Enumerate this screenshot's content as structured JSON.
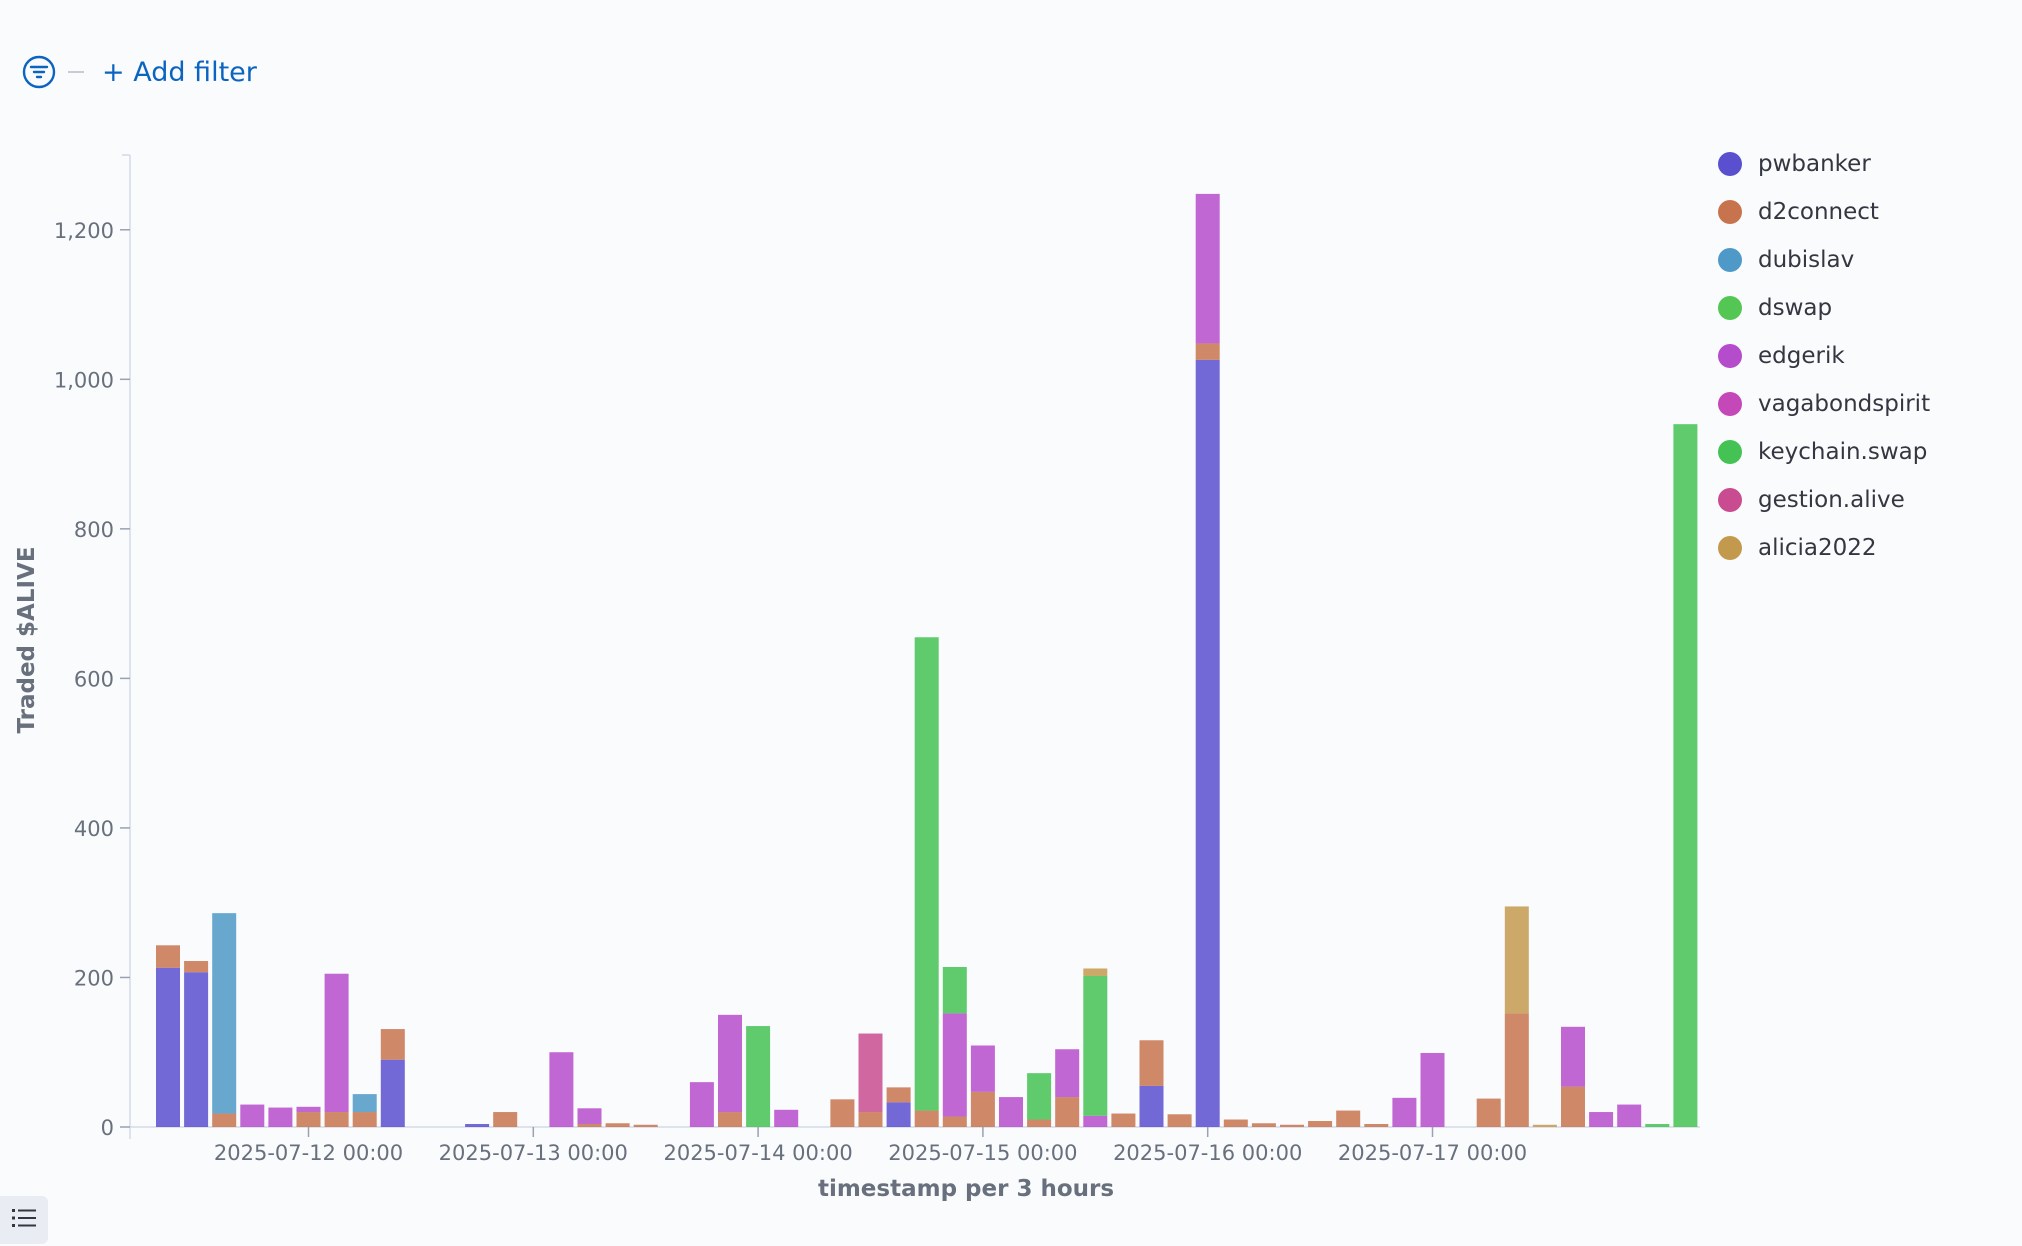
{
  "filter": {
    "add_label": "+ Add filter"
  },
  "icons": {
    "filter": "filter-icon",
    "list": "list-icon"
  },
  "chart_data": {
    "type": "bar",
    "stacked": true,
    "xlabel": "timestamp per 3 hours",
    "ylabel": "Traded $ALIVE",
    "ylim": [
      0,
      1300
    ],
    "yticks": [
      0,
      200,
      400,
      600,
      800,
      1000,
      1200
    ],
    "tick_labels": [
      "2025-07-12 00:00",
      "2025-07-13 00:00",
      "2025-07-14 00:00",
      "2025-07-15 00:00",
      "2025-07-16 00:00",
      "2025-07-17 00:00"
    ],
    "tick_positions": [
      5,
      13,
      21,
      29,
      37,
      45
    ],
    "legend_position": "right",
    "series": [
      {
        "name": "pwbanker",
        "color": "#5a4fcf"
      },
      {
        "name": "d2connect",
        "color": "#c7734d"
      },
      {
        "name": "dubislav",
        "color": "#4e99c7"
      },
      {
        "name": "dswap",
        "color": "#54c654"
      },
      {
        "name": "edgerik",
        "color": "#b54ccb"
      },
      {
        "name": "vagabondspirit",
        "color": "#c548b9"
      },
      {
        "name": "keychain.swap",
        "color": "#44c254"
      },
      {
        "name": "gestion.alive",
        "color": "#c84c8f"
      },
      {
        "name": "alicia2022",
        "color": "#c39a4d"
      }
    ],
    "bars": [
      {
        "slot": 0,
        "segments": [
          [
            "pwbanker",
            213
          ],
          [
            "d2connect",
            30
          ]
        ]
      },
      {
        "slot": 1,
        "segments": [
          [
            "pwbanker",
            207
          ],
          [
            "d2connect",
            15
          ]
        ]
      },
      {
        "slot": 2,
        "segments": [
          [
            "d2connect",
            18
          ],
          [
            "dubislav",
            268
          ]
        ]
      },
      {
        "slot": 3,
        "segments": [
          [
            "edgerik",
            30
          ]
        ]
      },
      {
        "slot": 4,
        "segments": [
          [
            "edgerik",
            26
          ]
        ]
      },
      {
        "slot": 5,
        "segments": [
          [
            "d2connect",
            20
          ],
          [
            "edgerik",
            7
          ]
        ]
      },
      {
        "slot": 6,
        "segments": [
          [
            "d2connect",
            20
          ],
          [
            "edgerik",
            185
          ]
        ]
      },
      {
        "slot": 7,
        "segments": [
          [
            "d2connect",
            20
          ],
          [
            "dubislav",
            24
          ]
        ]
      },
      {
        "slot": 8,
        "segments": [
          [
            "pwbanker",
            90
          ],
          [
            "d2connect",
            41
          ]
        ]
      },
      {
        "slot": 11,
        "segments": [
          [
            "pwbanker",
            4
          ]
        ]
      },
      {
        "slot": 12,
        "segments": [
          [
            "d2connect",
            20
          ]
        ]
      },
      {
        "slot": 14,
        "segments": [
          [
            "edgerik",
            100
          ]
        ]
      },
      {
        "slot": 15,
        "segments": [
          [
            "d2connect",
            4
          ],
          [
            "edgerik",
            21
          ]
        ]
      },
      {
        "slot": 16,
        "segments": [
          [
            "d2connect",
            5
          ]
        ]
      },
      {
        "slot": 17,
        "segments": [
          [
            "d2connect",
            3
          ]
        ]
      },
      {
        "slot": 19,
        "segments": [
          [
            "edgerik",
            60
          ]
        ]
      },
      {
        "slot": 20,
        "segments": [
          [
            "d2connect",
            20
          ],
          [
            "edgerik",
            130
          ]
        ]
      },
      {
        "slot": 21,
        "segments": [
          [
            "keychain.swap",
            135
          ]
        ]
      },
      {
        "slot": 22,
        "segments": [
          [
            "edgerik",
            23
          ]
        ]
      },
      {
        "slot": 24,
        "segments": [
          [
            "d2connect",
            37
          ]
        ]
      },
      {
        "slot": 25,
        "segments": [
          [
            "d2connect",
            20
          ],
          [
            "gestion.alive",
            105
          ]
        ]
      },
      {
        "slot": 26,
        "segments": [
          [
            "pwbanker",
            33
          ],
          [
            "d2connect",
            20
          ]
        ]
      },
      {
        "slot": 27,
        "segments": [
          [
            "d2connect",
            22
          ],
          [
            "keychain.swap",
            633
          ]
        ]
      },
      {
        "slot": 28,
        "segments": [
          [
            "d2connect",
            14
          ],
          [
            "edgerik",
            138
          ],
          [
            "keychain.swap",
            62
          ]
        ]
      },
      {
        "slot": 29,
        "segments": [
          [
            "d2connect",
            47
          ],
          [
            "edgerik",
            62
          ]
        ]
      },
      {
        "slot": 30,
        "segments": [
          [
            "edgerik",
            40
          ]
        ]
      },
      {
        "slot": 31,
        "segments": [
          [
            "d2connect",
            10
          ],
          [
            "keychain.swap",
            62
          ]
        ]
      },
      {
        "slot": 32,
        "segments": [
          [
            "d2connect",
            40
          ],
          [
            "edgerik",
            64
          ]
        ]
      },
      {
        "slot": 33,
        "segments": [
          [
            "edgerik",
            15
          ],
          [
            "keychain.swap",
            187
          ],
          [
            "alicia2022",
            10
          ]
        ]
      },
      {
        "slot": 34,
        "segments": [
          [
            "d2connect",
            18
          ]
        ]
      },
      {
        "slot": 35,
        "segments": [
          [
            "pwbanker",
            55
          ],
          [
            "d2connect",
            61
          ]
        ]
      },
      {
        "slot": 36,
        "segments": [
          [
            "d2connect",
            17
          ]
        ]
      },
      {
        "slot": 37,
        "segments": [
          [
            "pwbanker",
            1026
          ],
          [
            "d2connect",
            22
          ],
          [
            "edgerik",
            200
          ]
        ]
      },
      {
        "slot": 38,
        "segments": [
          [
            "d2connect",
            10
          ]
        ]
      },
      {
        "slot": 39,
        "segments": [
          [
            "d2connect",
            5
          ]
        ]
      },
      {
        "slot": 40,
        "segments": [
          [
            "d2connect",
            3
          ]
        ]
      },
      {
        "slot": 41,
        "segments": [
          [
            "d2connect",
            8
          ]
        ]
      },
      {
        "slot": 42,
        "segments": [
          [
            "d2connect",
            22
          ]
        ]
      },
      {
        "slot": 43,
        "segments": [
          [
            "d2connect",
            4
          ]
        ]
      },
      {
        "slot": 44,
        "segments": [
          [
            "edgerik",
            39
          ]
        ]
      },
      {
        "slot": 45,
        "segments": [
          [
            "edgerik",
            99
          ]
        ]
      },
      {
        "slot": 47,
        "segments": [
          [
            "d2connect",
            38
          ]
        ]
      },
      {
        "slot": 48,
        "segments": [
          [
            "d2connect",
            152
          ],
          [
            "alicia2022",
            143
          ]
        ]
      },
      {
        "slot": 49,
        "segments": [
          [
            "alicia2022",
            3
          ]
        ]
      },
      {
        "slot": 50,
        "segments": [
          [
            "d2connect",
            54
          ],
          [
            "edgerik",
            80
          ]
        ]
      },
      {
        "slot": 51,
        "segments": [
          [
            "edgerik",
            20
          ]
        ]
      },
      {
        "slot": 52,
        "segments": [
          [
            "edgerik",
            30
          ]
        ]
      },
      {
        "slot": 53,
        "segments": [
          [
            "keychain.swap",
            4
          ]
        ]
      },
      {
        "slot": 54,
        "segments": [
          [
            "keychain.swap",
            940
          ]
        ]
      }
    ]
  }
}
